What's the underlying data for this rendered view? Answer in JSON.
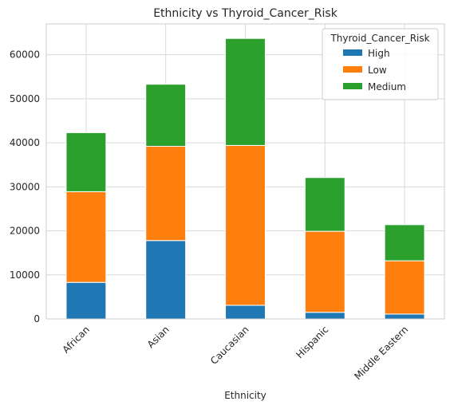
{
  "chart_data": {
    "type": "bar",
    "stacked": true,
    "title": "Ethnicity vs Thyroid_Cancer_Risk",
    "xlabel": "Ethnicity",
    "ylabel": "",
    "ylim": [
      0,
      67000
    ],
    "yticks": [
      0,
      10000,
      20000,
      30000,
      40000,
      50000,
      60000
    ],
    "grid": true,
    "legend": {
      "title": "Thyroid_Cancer_Risk",
      "placement": "top-right"
    },
    "categories": [
      "African",
      "Asian",
      "Caucasian",
      "Hispanic",
      "Middle Eastern"
    ],
    "series": [
      {
        "name": "High",
        "color": "#1f77b4",
        "values": [
          8300,
          17800,
          3100,
          1500,
          1100
        ]
      },
      {
        "name": "Low",
        "color": "#ff7f0e",
        "values": [
          20600,
          21400,
          36300,
          18400,
          12100
        ]
      },
      {
        "name": "Medium",
        "color": "#2ca02c",
        "values": [
          13400,
          14100,
          24300,
          12200,
          8200
        ]
      }
    ]
  }
}
